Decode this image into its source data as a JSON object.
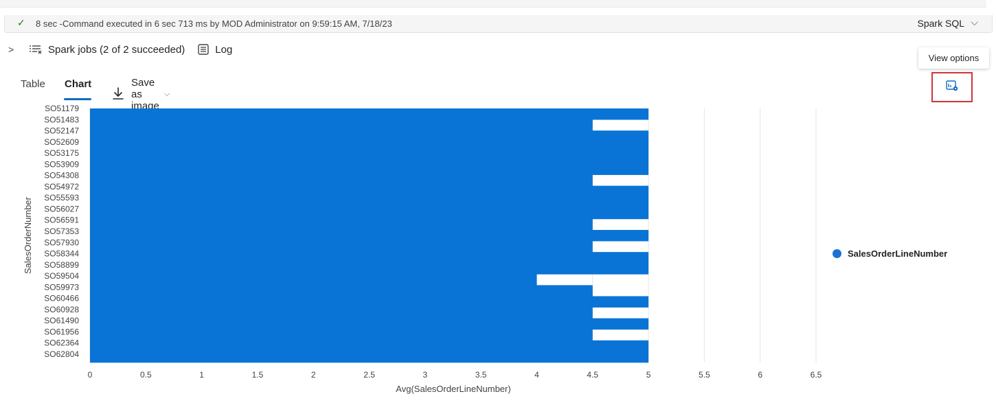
{
  "status": {
    "message": "8 sec -Command executed in 6 sec 713 ms by MOD Administrator on 9:59:15 AM, 7/18/23",
    "language": "Spark SQL"
  },
  "jobs": {
    "label": "Spark jobs (2 of 2 succeeded)",
    "log_label": "Log"
  },
  "tooltip": "View options",
  "tabs": {
    "table_label": "Table",
    "chart_label": "Chart",
    "save_label": "Save as image"
  },
  "colors": {
    "bar": "#0a74d6",
    "accent": "#0f6cbd",
    "highlight_box": "#d13438"
  },
  "chart_data": {
    "type": "bar",
    "orientation": "horizontal",
    "ylabel": "SalesOrderNumber",
    "xlabel": "Avg(SalesOrderLineNumber)",
    "xlim": [
      0,
      6.5
    ],
    "xticks": [
      "0",
      "0.5",
      "1",
      "1.5",
      "2",
      "2.5",
      "3",
      "3.5",
      "4",
      "4.5",
      "5",
      "5.5",
      "6",
      "6.5"
    ],
    "categories": [
      "SO51179",
      "SO51483",
      "SO52147",
      "SO52609",
      "SO53175",
      "SO53909",
      "SO54308",
      "SO54972",
      "SO55593",
      "SO56027",
      "SO56591",
      "SO57353",
      "SO57930",
      "SO58344",
      "SO58899",
      "SO59504",
      "SO59973",
      "SO60466",
      "SO60928",
      "SO61490",
      "SO61956",
      "SO62364",
      "SO62804"
    ],
    "series": [
      {
        "name": "SalesOrderLineNumber",
        "values": [
          5,
          4.5,
          5,
          5,
          5,
          5,
          4.5,
          5,
          5,
          5,
          4.5,
          5,
          4.5,
          5,
          5,
          4,
          4.5,
          5,
          4.5,
          5,
          4.5,
          5,
          5
        ]
      }
    ],
    "grid": "vertical",
    "legend": "right"
  }
}
